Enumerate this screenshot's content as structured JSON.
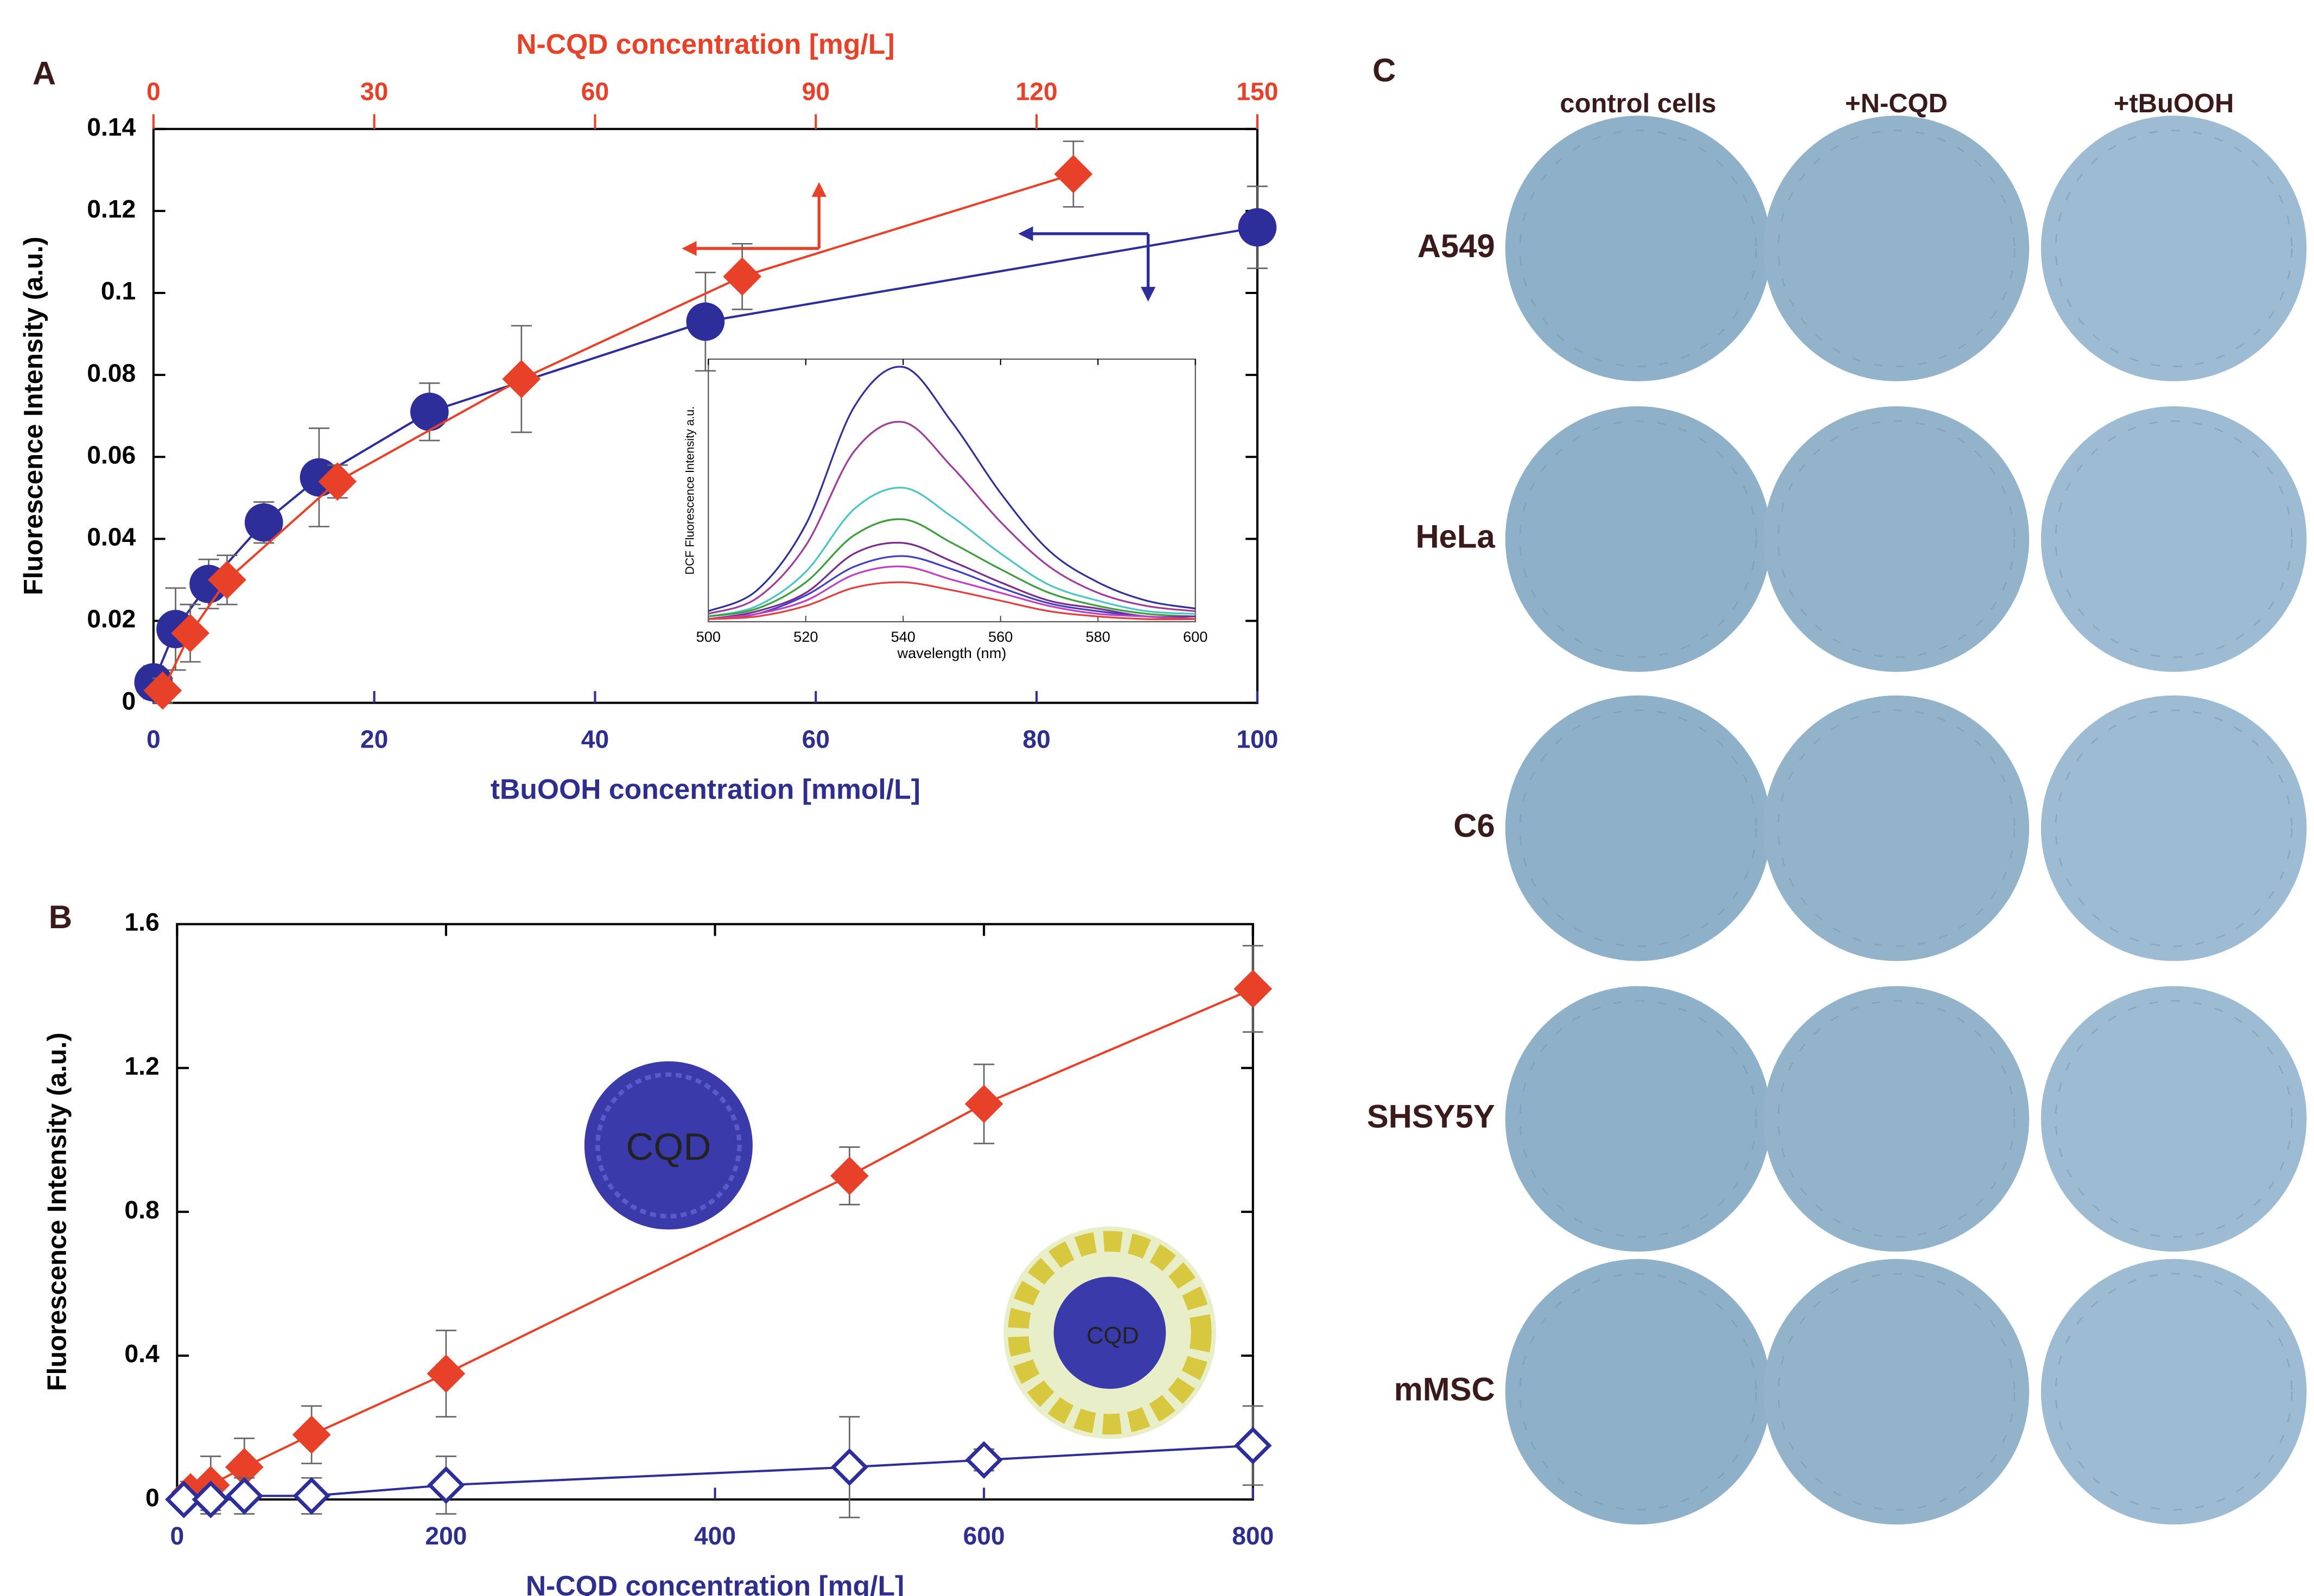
{
  "chart_data": [
    {
      "type": "scatter",
      "panel_label": "A",
      "xlabel": "tBuOOH concentration [mmol/L]",
      "x2label": "N-CQD concentration [mg/L]",
      "ylabel": "Fluorescence Intensity (a.u.)",
      "xlim": [
        0,
        100
      ],
      "xticks": [
        0,
        20,
        40,
        60,
        80,
        100
      ],
      "xaxis_color": "#2e2e8f",
      "x2lim": [
        0,
        150
      ],
      "x2ticks": [
        0,
        30,
        60,
        90,
        120,
        150
      ],
      "x2axis_color": "#e8412a",
      "ylim": [
        0,
        0.14
      ],
      "yticks": [
        0,
        0.02,
        0.04,
        0.06,
        0.08,
        0.1,
        0.12,
        0.14
      ],
      "series": [
        {
          "color": "#2e2e9a",
          "marker": "circle",
          "x": [
            0,
            2,
            5,
            10,
            15,
            25,
            50,
            100
          ],
          "values": [
            0.005,
            0.018,
            0.029,
            0.044,
            0.055,
            0.071,
            0.093,
            0.116
          ],
          "errors": [
            0.004,
            0.01,
            0.006,
            0.005,
            0.012,
            0.007,
            0.012,
            0.01
          ]
        },
        {
          "color": "#e8412a",
          "marker": "diamond",
          "axis": "x2",
          "x": [
            1.25,
            5,
            10,
            25,
            50,
            80,
            125
          ],
          "values": [
            0.003,
            0.017,
            0.03,
            0.054,
            0.079,
            0.104,
            0.129
          ],
          "errors": [
            0.003,
            0.007,
            0.006,
            0.004,
            0.013,
            0.008,
            0.008
          ]
        }
      ]
    },
    {
      "type": "line",
      "xlabel": "wavelength (nm)",
      "ylabel": "DCF Fluorescence Intensity a.u.",
      "xlim": [
        500,
        600
      ],
      "xticks": [
        500,
        520,
        540,
        560,
        580,
        600
      ],
      "ylim": [
        0,
        1
      ],
      "x": [
        500,
        510,
        520,
        530,
        540,
        550,
        560,
        570,
        580,
        590,
        600
      ],
      "series": [
        {
          "color": "#303098",
          "values": [
            0.04,
            0.12,
            0.37,
            0.82,
            0.97,
            0.76,
            0.49,
            0.27,
            0.15,
            0.08,
            0.05
          ]
        },
        {
          "color": "#a03c9c",
          "values": [
            0.03,
            0.09,
            0.29,
            0.65,
            0.76,
            0.59,
            0.38,
            0.21,
            0.11,
            0.06,
            0.04
          ]
        },
        {
          "color": "#4cc4c8",
          "values": [
            0.02,
            0.06,
            0.19,
            0.43,
            0.51,
            0.4,
            0.26,
            0.14,
            0.08,
            0.04,
            0.03
          ]
        },
        {
          "color": "#3e9e3e",
          "values": [
            0.02,
            0.05,
            0.15,
            0.33,
            0.39,
            0.3,
            0.2,
            0.11,
            0.06,
            0.03,
            0.02
          ]
        },
        {
          "color": "#7a2c8c",
          "values": [
            0.01,
            0.04,
            0.11,
            0.26,
            0.3,
            0.23,
            0.15,
            0.08,
            0.05,
            0.02,
            0.02
          ]
        },
        {
          "color": "#4040c0",
          "values": [
            0.01,
            0.03,
            0.1,
            0.21,
            0.25,
            0.2,
            0.13,
            0.07,
            0.04,
            0.02,
            0.01
          ]
        },
        {
          "color": "#c040c0",
          "values": [
            0.01,
            0.03,
            0.08,
            0.18,
            0.21,
            0.16,
            0.11,
            0.06,
            0.03,
            0.02,
            0.01
          ]
        },
        {
          "color": "#e04040",
          "values": [
            0.01,
            0.02,
            0.06,
            0.13,
            0.15,
            0.12,
            0.08,
            0.04,
            0.02,
            0.01,
            0.01
          ]
        }
      ]
    },
    {
      "type": "scatter",
      "panel_label": "B",
      "xlabel": "N-CQD concentration [mg/L]",
      "ylabel": "Fluorescence Intensity (a.u.)",
      "xlim": [
        0,
        800
      ],
      "xticks": [
        0,
        200,
        400,
        600,
        800
      ],
      "xaxis_color": "#2e2e8f",
      "ylim": [
        0,
        1.6
      ],
      "yticks": [
        0,
        0.4,
        0.8,
        1.2,
        1.6
      ],
      "annotations": [
        "CQD",
        "CQD"
      ],
      "series": [
        {
          "color": "#e8412a",
          "marker": "diamond",
          "x": [
            10,
            25,
            50,
            100,
            200,
            500,
            600,
            800
          ],
          "values": [
            0.02,
            0.04,
            0.09,
            0.18,
            0.35,
            0.9,
            1.1,
            1.42
          ],
          "errors": [
            0.03,
            0.08,
            0.08,
            0.08,
            0.12,
            0.08,
            0.11,
            0.12
          ]
        },
        {
          "color": "#2e2e9a",
          "marker": "diamond-open",
          "x": [
            5,
            25,
            50,
            100,
            200,
            500,
            600,
            800
          ],
          "values": [
            0.0,
            0.0,
            0.01,
            0.01,
            0.04,
            0.09,
            0.11,
            0.15
          ],
          "errors": [
            0.02,
            0.03,
            0.05,
            0.05,
            0.08,
            0.14,
            0.03,
            0.11
          ]
        }
      ]
    }
  ],
  "panel_c": {
    "panel_label": "C",
    "columns": [
      "control cells",
      "+N-CQD",
      "+tBuOOH"
    ],
    "rows": [
      "A549",
      "HeLa",
      "C6",
      "SHSY5Y",
      "mMSC"
    ]
  }
}
